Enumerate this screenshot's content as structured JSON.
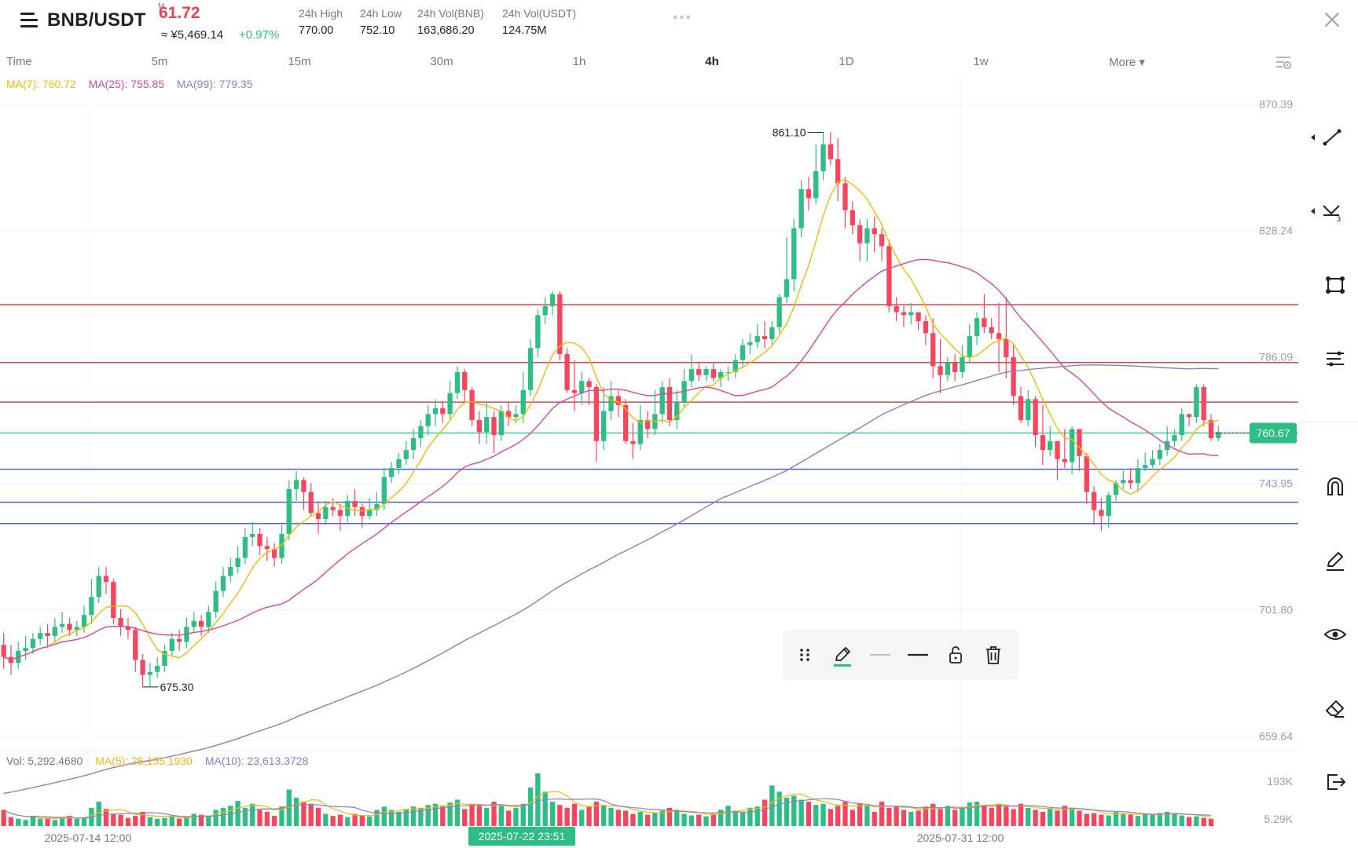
{
  "header": {
    "pair": "BNB/USDT",
    "price": "61.72",
    "price_prefix": "M",
    "cny": "≈ ¥5,469.14",
    "change": "+0.97%",
    "stats": [
      {
        "label": "24h High",
        "value": "770.00"
      },
      {
        "label": "24h Low",
        "value": "752.10"
      },
      {
        "label": "24h Vol(BNB)",
        "value": "163,686.20"
      },
      {
        "label": "24h Vol(USDT)",
        "value": "124.75M"
      }
    ],
    "more_dots": "•••"
  },
  "tabs": [
    "Time",
    "5m",
    "15m",
    "30m",
    "1h",
    "4h",
    "1D",
    "1w",
    "More ▾"
  ],
  "active_tab": "4h",
  "ma_legend": {
    "ma7": "MA(7): 760.72",
    "ma25": "MA(25): 755.85",
    "ma99": "MA(99): 779.35"
  },
  "vol_legend": {
    "vol": "Vol: 5,292.4680",
    "ma5": "MA(5): 25,155.1930",
    "ma10": "MA(10): 23,613.3728"
  },
  "price_axis": [
    "870.39",
    "828.24",
    "786.09",
    "743.95",
    "701.80",
    "659.64"
  ],
  "volume_axis": [
    "193K",
    "5.29K"
  ],
  "time_axis": [
    "2025-07-14 12:00",
    "2025-07-31 12:00"
  ],
  "crosshair_time": "2025-07-22 23:51",
  "current_price_tag": "760.67",
  "high_marker": "861.10",
  "low_marker": "675.30",
  "colors": {
    "up": "#2ebd85",
    "down": "#f6465d",
    "ma7": "#f0b90b",
    "ma25": "#d6479a",
    "ma99": "#8e7cc3",
    "resistance": "#e04848",
    "support": "#4a5fd1",
    "current": "#2ebd85"
  },
  "drawing_toolbar": [
    "drag-handle-icon",
    "pencil-icon",
    "thin-line-icon",
    "thick-line-icon",
    "lock-icon",
    "trash-icon"
  ],
  "right_tools": [
    "trendline-icon",
    "fib-icon",
    "rectangle-icon",
    "parallel-lines-icon",
    "magnet-icon",
    "pen-icon",
    "eye-icon",
    "eraser-icon",
    "exit-icon"
  ],
  "chart_data": {
    "type": "candlestick",
    "timeframe": "4h",
    "ylim": [
      655,
      875
    ],
    "horizontal_lines": {
      "resistance": [
        803.5,
        784.2,
        771.0
      ],
      "current": 760.67,
      "support": [
        748.6,
        737.6,
        730.5
      ]
    },
    "candles": [
      [
        690,
        686,
        694,
        682
      ],
      [
        686,
        684,
        690,
        680
      ],
      [
        684,
        688,
        691,
        682
      ],
      [
        688,
        689,
        693,
        685
      ],
      [
        689,
        692,
        694,
        687
      ],
      [
        692,
        694,
        696,
        690
      ],
      [
        694,
        693,
        697,
        689
      ],
      [
        693,
        696,
        699,
        691
      ],
      [
        696,
        697,
        701,
        694
      ],
      [
        697,
        695,
        699,
        693
      ],
      [
        695,
        696,
        698,
        693
      ],
      [
        696,
        700,
        703,
        694
      ],
      [
        700,
        706,
        712,
        697
      ],
      [
        706,
        713,
        716,
        704
      ],
      [
        713,
        711,
        716,
        707
      ],
      [
        711,
        699,
        712,
        697
      ],
      [
        699,
        696,
        702,
        693
      ],
      [
        696,
        695,
        699,
        692
      ],
      [
        695,
        685,
        696,
        681
      ],
      [
        685,
        680,
        687,
        676
      ],
      [
        680,
        681,
        684,
        676
      ],
      [
        681,
        683,
        686,
        679
      ],
      [
        683,
        688,
        690,
        681
      ],
      [
        688,
        692,
        694,
        686
      ],
      [
        692,
        691,
        695,
        688
      ],
      [
        691,
        696,
        699,
        689
      ],
      [
        696,
        698,
        701,
        694
      ],
      [
        698,
        696,
        700,
        693
      ],
      [
        696,
        701,
        703,
        694
      ],
      [
        701,
        708,
        711,
        699
      ],
      [
        708,
        713,
        716,
        706
      ],
      [
        713,
        716,
        719,
        711
      ],
      [
        716,
        719,
        723,
        714
      ],
      [
        719,
        726,
        729,
        717
      ],
      [
        726,
        727,
        731,
        723
      ],
      [
        727,
        723,
        729,
        720
      ],
      [
        723,
        722,
        726,
        718
      ],
      [
        722,
        719,
        724,
        716
      ],
      [
        719,
        727,
        730,
        717
      ],
      [
        727,
        742,
        745,
        725
      ],
      [
        742,
        745,
        748,
        738
      ],
      [
        745,
        741,
        746,
        735
      ],
      [
        741,
        734,
        744,
        733
      ],
      [
        734,
        732,
        738,
        727
      ],
      [
        732,
        736,
        738,
        730
      ],
      [
        736,
        735,
        739,
        733
      ],
      [
        735,
        733,
        737,
        728
      ],
      [
        733,
        738,
        740,
        731
      ],
      [
        738,
        736,
        742,
        733
      ],
      [
        736,
        733,
        737,
        729
      ],
      [
        733,
        735,
        739,
        732
      ],
      [
        735,
        737,
        741,
        733
      ],
      [
        737,
        746,
        749,
        735
      ],
      [
        746,
        749,
        751,
        744
      ],
      [
        749,
        752,
        754,
        747
      ],
      [
        752,
        755,
        758,
        750
      ],
      [
        755,
        759,
        762,
        752
      ],
      [
        759,
        763,
        765,
        756
      ],
      [
        763,
        767,
        770,
        760
      ],
      [
        767,
        769,
        772,
        763
      ],
      [
        769,
        767,
        771,
        764
      ],
      [
        767,
        774,
        778,
        765
      ],
      [
        774,
        781,
        783,
        772
      ],
      [
        781,
        775,
        782,
        771
      ],
      [
        775,
        765,
        776,
        763
      ],
      [
        765,
        761,
        768,
        757
      ],
      [
        761,
        766,
        771,
        757
      ],
      [
        766,
        760,
        768,
        754
      ],
      [
        760,
        768,
        770,
        758
      ],
      [
        768,
        766,
        771,
        763
      ],
      [
        766,
        767,
        770,
        764
      ],
      [
        767,
        775,
        781,
        764
      ],
      [
        775,
        789,
        792,
        773
      ],
      [
        789,
        800,
        802,
        786
      ],
      [
        800,
        803,
        806,
        797
      ],
      [
        803,
        807,
        808,
        800
      ],
      [
        807,
        787,
        808,
        785
      ],
      [
        787,
        775,
        789,
        774
      ],
      [
        775,
        774,
        785,
        768
      ],
      [
        774,
        778,
        781,
        770
      ],
      [
        778,
        776,
        779,
        770
      ],
      [
        776,
        758,
        777,
        751
      ],
      [
        758,
        768,
        776,
        755
      ],
      [
        768,
        773,
        778,
        765
      ],
      [
        773,
        770,
        775,
        766
      ],
      [
        770,
        758,
        772,
        757
      ],
      [
        758,
        757,
        764,
        752
      ],
      [
        757,
        765,
        770,
        755
      ],
      [
        765,
        762,
        768,
        759
      ],
      [
        762,
        767,
        775,
        760
      ],
      [
        767,
        776,
        778,
        764
      ],
      [
        776,
        765,
        779,
        763
      ],
      [
        765,
        771,
        775,
        762
      ],
      [
        771,
        778,
        782,
        769
      ],
      [
        778,
        782,
        787,
        776
      ],
      [
        782,
        780,
        784,
        778
      ],
      [
        780,
        782,
        783,
        778
      ],
      [
        782,
        779,
        784,
        778
      ],
      [
        779,
        781,
        782,
        776
      ],
      [
        781,
        781,
        783,
        778
      ],
      [
        781,
        785,
        787,
        779
      ],
      [
        785,
        790,
        792,
        783
      ],
      [
        790,
        791,
        794,
        787
      ],
      [
        791,
        793,
        797,
        789
      ],
      [
        793,
        792,
        798,
        789
      ],
      [
        792,
        796,
        798,
        790
      ],
      [
        796,
        806,
        807,
        794
      ],
      [
        806,
        812,
        826,
        804
      ],
      [
        812,
        829,
        832,
        808
      ],
      [
        829,
        842,
        845,
        826
      ],
      [
        842,
        839,
        846,
        835
      ],
      [
        839,
        848,
        857,
        837
      ],
      [
        848,
        857,
        861,
        845
      ],
      [
        857,
        852,
        861,
        850
      ],
      [
        852,
        844,
        859,
        838
      ],
      [
        844,
        835,
        846,
        829
      ],
      [
        835,
        830,
        838,
        827
      ],
      [
        830,
        824,
        832,
        818
      ],
      [
        824,
        829,
        832,
        818
      ],
      [
        829,
        827,
        833,
        821
      ],
      [
        827,
        823,
        829,
        818
      ],
      [
        823,
        803,
        825,
        801
      ],
      [
        803,
        801,
        806,
        798
      ],
      [
        801,
        800,
        803,
        796
      ],
      [
        800,
        801,
        804,
        797
      ],
      [
        801,
        798,
        801,
        795
      ],
      [
        798,
        794,
        800,
        790
      ],
      [
        794,
        783,
        799,
        779
      ],
      [
        783,
        780,
        792,
        774
      ],
      [
        780,
        784,
        786,
        778
      ],
      [
        784,
        781,
        787,
        778
      ],
      [
        781,
        786,
        790,
        779
      ],
      [
        786,
        793,
        797,
        784
      ],
      [
        793,
        799,
        801,
        790
      ],
      [
        799,
        796,
        807,
        794
      ],
      [
        796,
        794,
        799,
        792
      ],
      [
        794,
        792,
        804,
        781
      ],
      [
        792,
        786,
        806,
        779
      ],
      [
        786,
        773,
        790,
        770
      ],
      [
        773,
        765,
        776,
        764
      ],
      [
        765,
        772,
        775,
        763
      ],
      [
        772,
        760,
        773,
        756
      ],
      [
        760,
        755,
        770,
        750
      ],
      [
        755,
        758,
        763,
        753
      ],
      [
        758,
        752,
        757,
        745
      ],
      [
        752,
        751,
        762,
        749
      ],
      [
        751,
        762,
        763,
        747
      ],
      [
        762,
        753,
        758,
        748
      ],
      [
        753,
        741,
        754,
        737
      ],
      [
        741,
        735,
        743,
        730
      ],
      [
        735,
        733,
        739,
        728
      ],
      [
        733,
        740,
        741,
        729
      ],
      [
        740,
        744,
        745,
        738
      ],
      [
        744,
        745,
        748,
        742
      ],
      [
        745,
        744,
        749,
        742
      ],
      [
        744,
        749,
        752,
        741
      ],
      [
        749,
        750,
        754,
        748
      ],
      [
        750,
        752,
        755,
        749
      ],
      [
        752,
        755,
        757,
        750
      ],
      [
        755,
        758,
        763,
        753
      ],
      [
        758,
        760,
        762,
        756
      ],
      [
        760,
        767,
        769,
        758
      ],
      [
        767,
        766,
        767,
        763
      ],
      [
        766,
        776,
        777,
        764
      ],
      [
        776,
        765,
        777,
        763
      ],
      [
        765,
        759,
        767,
        758
      ],
      [
        759,
        761,
        763,
        758
      ]
    ],
    "series": [
      {
        "name": "MA(7)",
        "value": 760.72
      },
      {
        "name": "MA(25)",
        "value": 755.85
      },
      {
        "name": "MA(99)",
        "value": 779.35
      }
    ],
    "volume": [
      40,
      22,
      18,
      15,
      25,
      18,
      20,
      15,
      22,
      25,
      18,
      20,
      45,
      60,
      42,
      30,
      28,
      20,
      25,
      35,
      22,
      18,
      20,
      25,
      18,
      22,
      30,
      28,
      25,
      40,
      45,
      50,
      62,
      45,
      55,
      40,
      35,
      25,
      48,
      90,
      70,
      60,
      55,
      45,
      30,
      25,
      28,
      22,
      30,
      26,
      24,
      40,
      48,
      40,
      35,
      42,
      48,
      45,
      52,
      55,
      48,
      58,
      65,
      42,
      55,
      50,
      45,
      60,
      50,
      38,
      45,
      55,
      95,
      130,
      85,
      60,
      52,
      45,
      55,
      40,
      48,
      60,
      52,
      45,
      40,
      38,
      30,
      35,
      28,
      32,
      38,
      45,
      40,
      30,
      26,
      28,
      24,
      30,
      40,
      50,
      38,
      35,
      45,
      48,
      65,
      100,
      85,
      70,
      75,
      65,
      60,
      52,
      55,
      42,
      50,
      60,
      40,
      55,
      50,
      35,
      60,
      45,
      50,
      40,
      35,
      38,
      48,
      55,
      42,
      50,
      40,
      45,
      58,
      60,
      52,
      45,
      55,
      48,
      42,
      55,
      45,
      40,
      35,
      42,
      38,
      50,
      45,
      38,
      30,
      32,
      28,
      26,
      35,
      30,
      28,
      25,
      30,
      28,
      32,
      35,
      30,
      26,
      22,
      24,
      20,
      18
    ],
    "volume_ma": {
      "ma5": "25,155.1930",
      "ma10": "23,613.3728"
    }
  }
}
